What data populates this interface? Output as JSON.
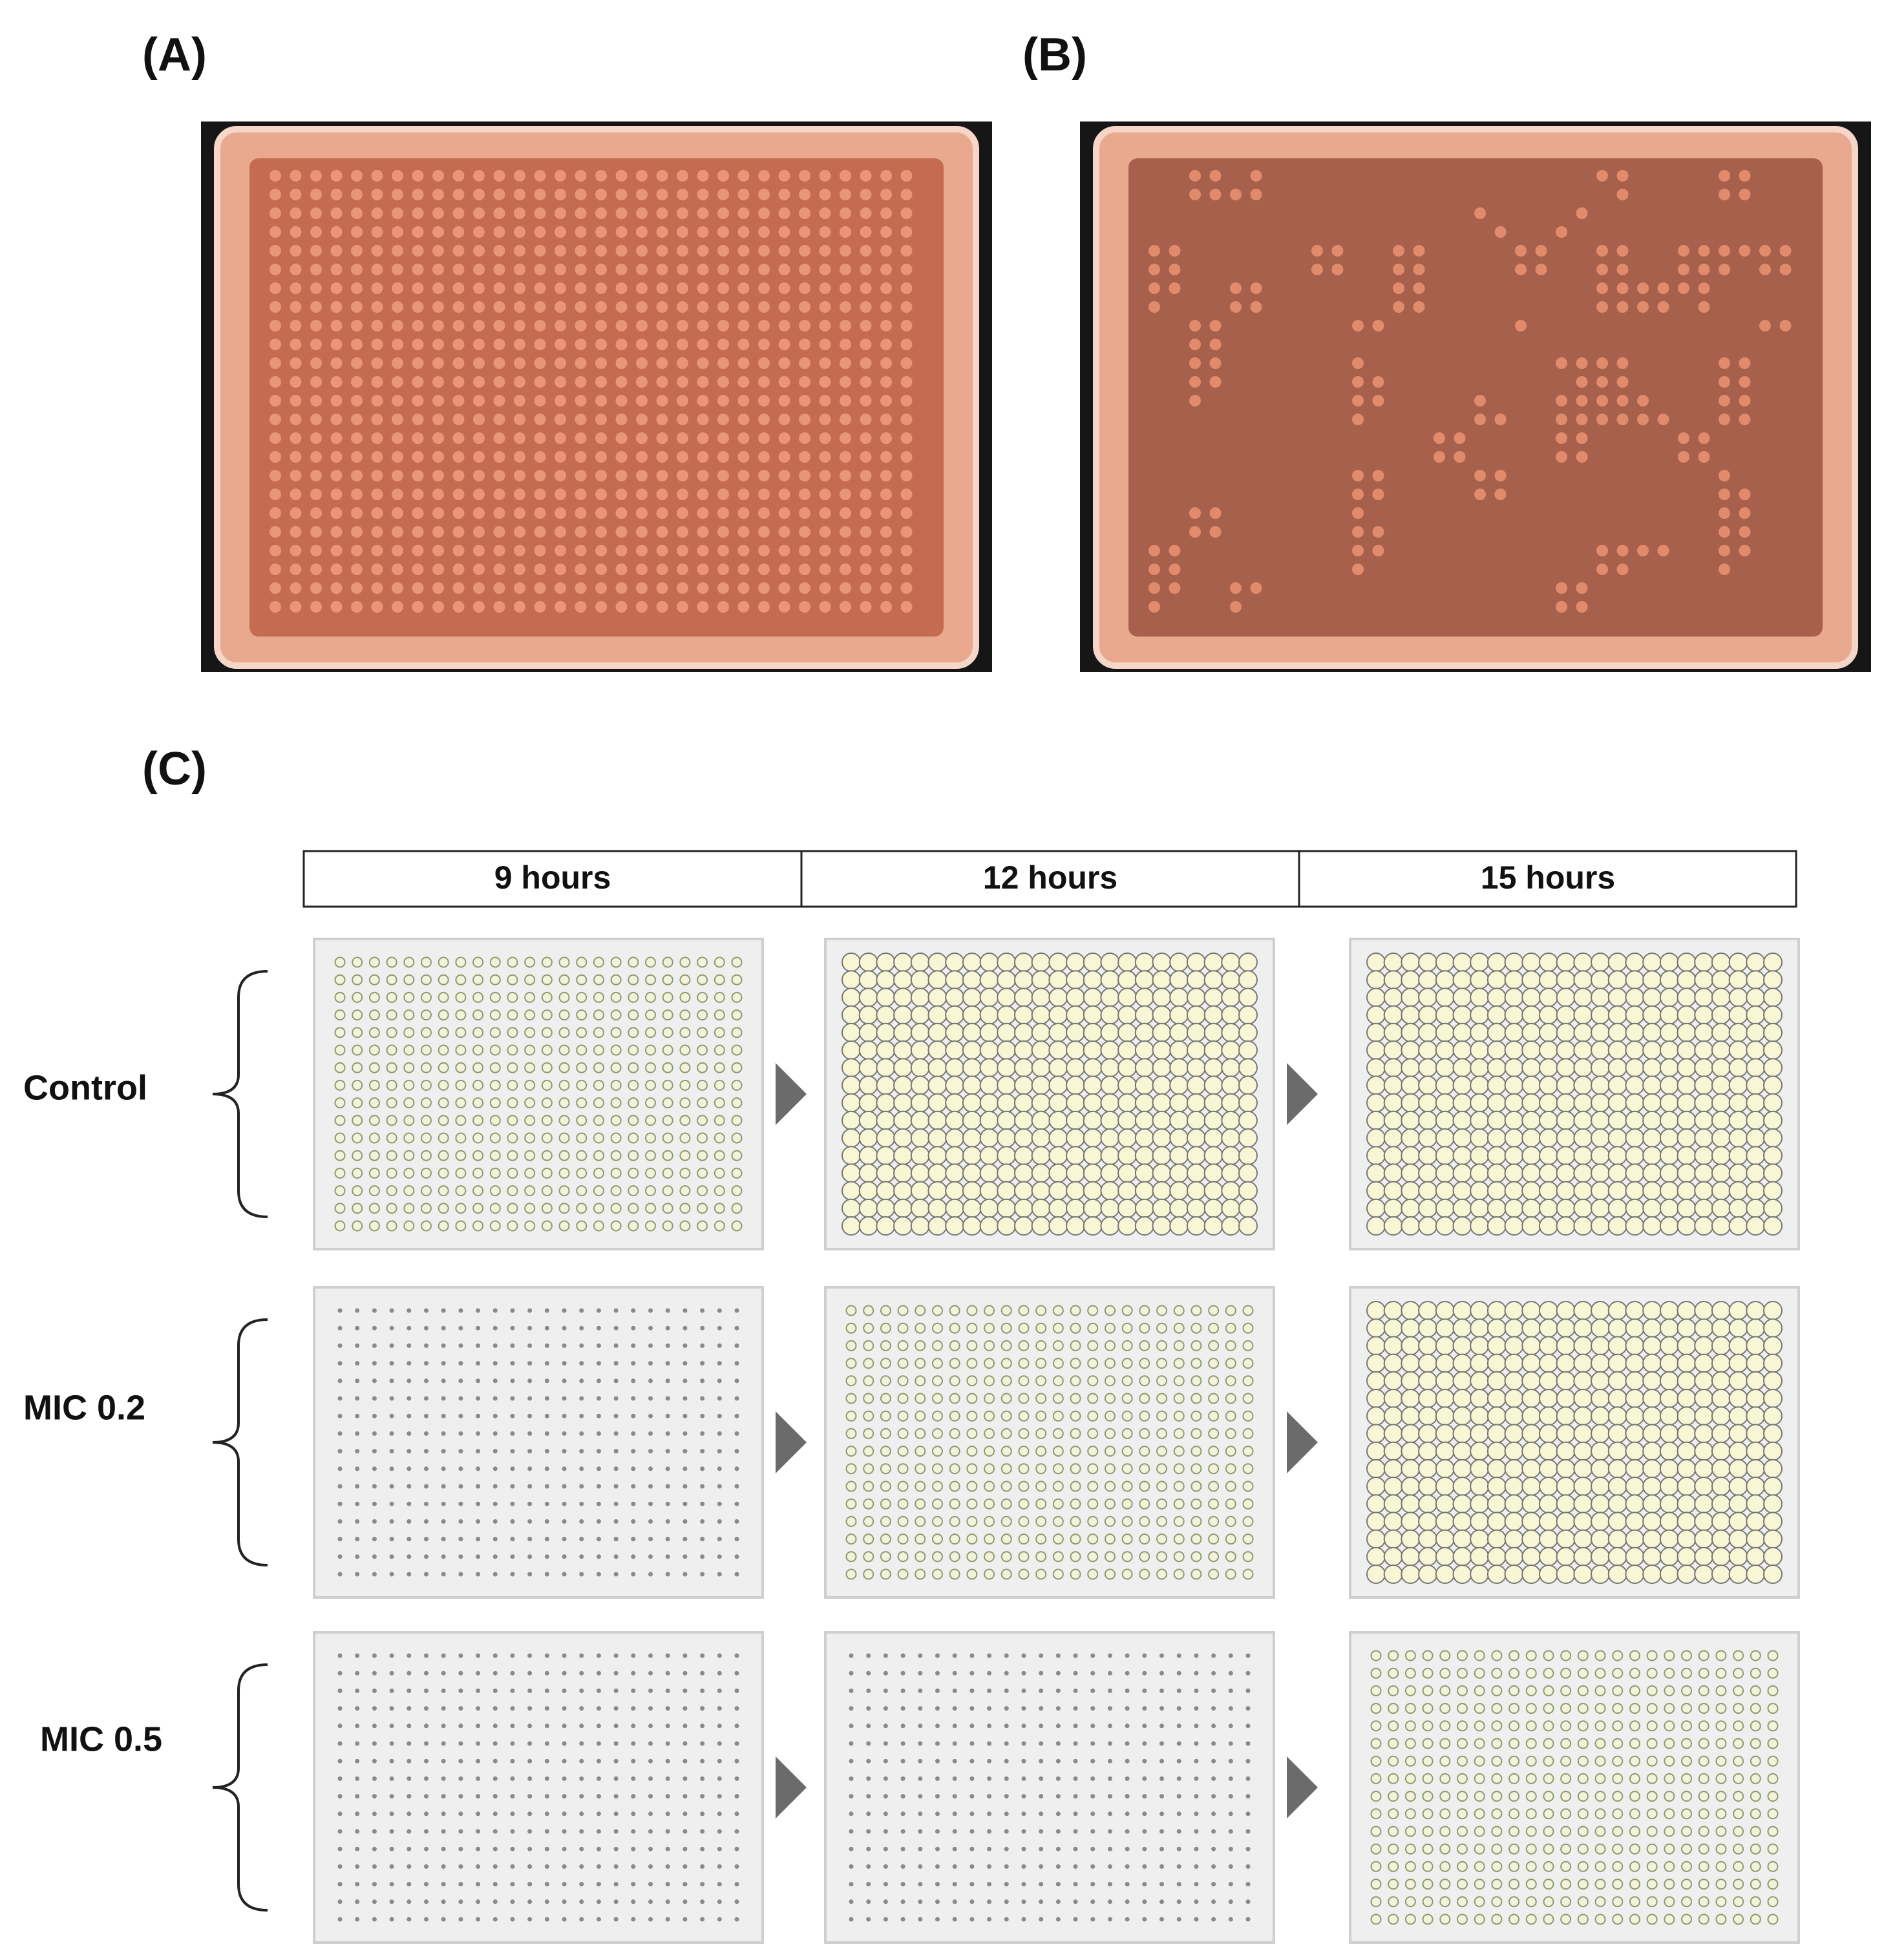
{
  "panels": {
    "a": "(A)",
    "b": "(B)",
    "c": "(C)"
  },
  "columns": [
    "9 hours",
    "12 hours",
    "15 hours"
  ],
  "rows": [
    "Control",
    "MIC 0.2",
    "MIC 0.5"
  ]
}
